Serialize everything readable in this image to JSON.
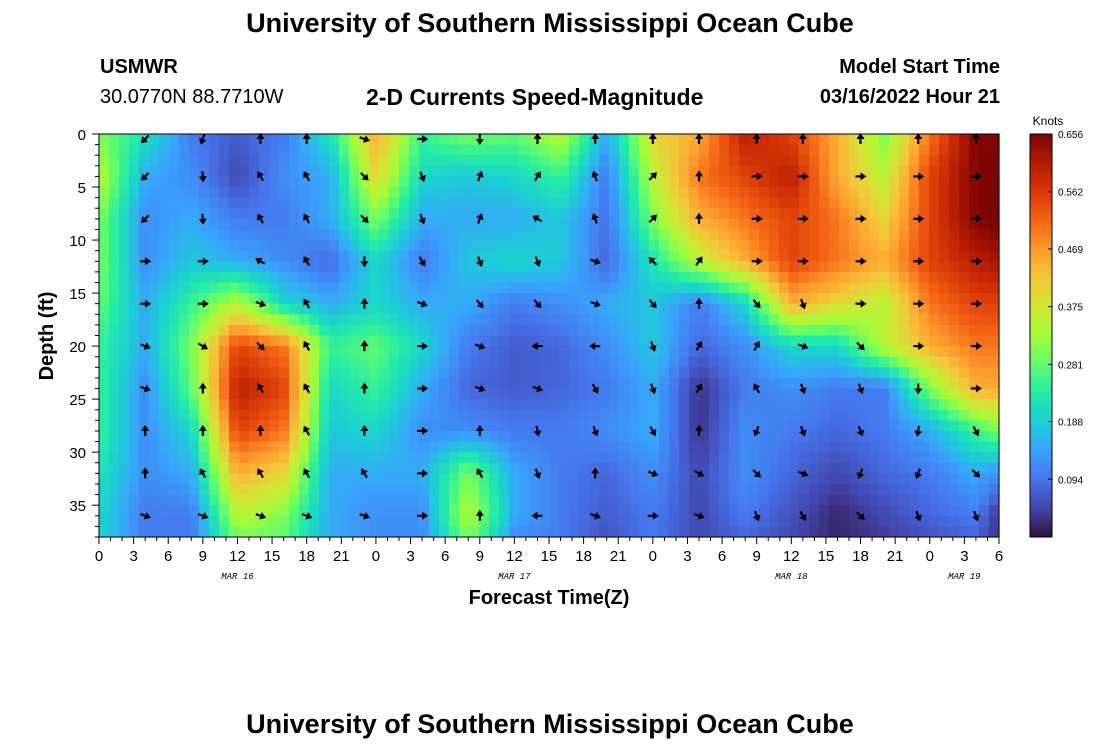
{
  "header": {
    "title": "University of Southern Mississippi Ocean Cube",
    "station": "USMWR",
    "coords": "30.0770N  88.7710W",
    "subtitle": "2-D Currents Speed-Magnitude",
    "model_label": "Model Start Time",
    "model_time": "03/16/2022 Hour 21"
  },
  "footer": {
    "title": "University of Southern Mississippi Ocean Cube"
  },
  "colors": {
    "ramp": [
      "#30123b",
      "#4145ab",
      "#4675ed",
      "#39a2fc",
      "#1bcfd4",
      "#24eca6",
      "#61fc6c",
      "#a4fc3b",
      "#d1e834",
      "#f3c63a",
      "#fe9b2d",
      "#f36315",
      "#d93806",
      "#b11901",
      "#7a0402"
    ]
  },
  "chart_data": {
    "type": "heatmap",
    "title": "2-D Currents Speed-Magnitude",
    "xlabel": "Forecast Time(Z)",
    "ylabel": "Depth (ft)",
    "x_tick_labels": [
      "0",
      "3",
      "6",
      "9",
      "12",
      "15",
      "18",
      "21",
      "0",
      "3",
      "6",
      "9",
      "12",
      "15",
      "18",
      "21",
      "0",
      "3",
      "6",
      "9",
      "12",
      "15",
      "18",
      "21",
      "0",
      "3",
      "6"
    ],
    "date_labels": [
      {
        "label": "MAR 16",
        "hour": 12
      },
      {
        "label": "MAR 17",
        "hour": 36
      },
      {
        "label": "MAR 18",
        "hour": 60
      },
      {
        "label": "MAR 19",
        "hour": 75
      }
    ],
    "xlim": [
      0,
      78
    ],
    "ylim": [
      0,
      38
    ],
    "y_ticks": [
      0,
      5,
      10,
      15,
      20,
      25,
      30,
      35
    ],
    "colorbar": {
      "label": "Knots",
      "min": 0,
      "max": 0.656,
      "ticks": [
        0.094,
        0.188,
        0.281,
        0.375,
        0.469,
        0.562,
        0.656
      ],
      "tick_labels": [
        "0.094",
        "0.188",
        "0.281",
        "0.375",
        "0.469",
        "0.562",
        "0.656"
      ]
    },
    "speed_x_hours": [
      0,
      4,
      8,
      12,
      16,
      20,
      24,
      28,
      32,
      36,
      40,
      44,
      48,
      52,
      56,
      60,
      64,
      68,
      72,
      76,
      78
    ],
    "speed_y_depths": [
      0,
      4,
      8,
      12,
      16,
      20,
      24,
      28,
      32,
      36,
      38
    ],
    "speed_knots": [
      [
        0.3,
        0.22,
        0.1,
        0.07,
        0.1,
        0.22,
        0.45,
        0.25,
        0.3,
        0.28,
        0.35,
        0.15,
        0.4,
        0.45,
        0.6,
        0.55,
        0.45,
        0.3,
        0.5,
        0.65,
        0.65
      ],
      [
        0.35,
        0.15,
        0.12,
        0.05,
        0.12,
        0.15,
        0.4,
        0.2,
        0.18,
        0.2,
        0.25,
        0.1,
        0.35,
        0.5,
        0.55,
        0.6,
        0.45,
        0.35,
        0.55,
        0.65,
        0.66
      ],
      [
        0.3,
        0.12,
        0.15,
        0.1,
        0.1,
        0.15,
        0.3,
        0.15,
        0.15,
        0.15,
        0.18,
        0.09,
        0.3,
        0.45,
        0.5,
        0.55,
        0.5,
        0.4,
        0.55,
        0.65,
        0.66
      ],
      [
        0.3,
        0.12,
        0.18,
        0.15,
        0.12,
        0.08,
        0.2,
        0.1,
        0.18,
        0.2,
        0.18,
        0.08,
        0.22,
        0.35,
        0.45,
        0.55,
        0.5,
        0.45,
        0.55,
        0.6,
        0.62
      ],
      [
        0.28,
        0.15,
        0.25,
        0.35,
        0.2,
        0.15,
        0.2,
        0.15,
        0.15,
        0.1,
        0.12,
        0.15,
        0.18,
        0.1,
        0.2,
        0.45,
        0.4,
        0.35,
        0.5,
        0.55,
        0.55
      ],
      [
        0.25,
        0.15,
        0.3,
        0.55,
        0.5,
        0.25,
        0.28,
        0.2,
        0.1,
        0.07,
        0.08,
        0.12,
        0.18,
        0.08,
        0.12,
        0.2,
        0.2,
        0.35,
        0.45,
        0.5,
        0.5
      ],
      [
        0.25,
        0.12,
        0.28,
        0.6,
        0.55,
        0.2,
        0.25,
        0.15,
        0.08,
        0.07,
        0.08,
        0.1,
        0.15,
        0.03,
        0.1,
        0.12,
        0.1,
        0.1,
        0.3,
        0.45,
        0.45
      ],
      [
        0.25,
        0.12,
        0.2,
        0.55,
        0.5,
        0.18,
        0.2,
        0.12,
        0.12,
        0.1,
        0.1,
        0.12,
        0.15,
        0.03,
        0.12,
        0.1,
        0.08,
        0.1,
        0.15,
        0.25,
        0.3
      ],
      [
        0.22,
        0.12,
        0.15,
        0.45,
        0.4,
        0.15,
        0.15,
        0.15,
        0.3,
        0.15,
        0.1,
        0.08,
        0.12,
        0.05,
        0.12,
        0.08,
        0.05,
        0.08,
        0.1,
        0.15,
        0.12
      ],
      [
        0.2,
        0.1,
        0.1,
        0.35,
        0.3,
        0.15,
        0.12,
        0.12,
        0.35,
        0.15,
        0.1,
        0.07,
        0.1,
        0.05,
        0.1,
        0.06,
        0.02,
        0.05,
        0.08,
        0.1,
        0.03
      ],
      [
        0.2,
        0.1,
        0.1,
        0.3,
        0.28,
        0.15,
        0.12,
        0.12,
        0.3,
        0.12,
        0.1,
        0.06,
        0.1,
        0.05,
        0.08,
        0.05,
        0.02,
        0.04,
        0.06,
        0.08,
        0.03
      ]
    ],
    "arrow_x_hours": [
      4,
      9,
      14,
      18,
      23,
      28,
      33,
      38,
      43,
      48,
      52,
      57,
      61,
      66,
      71,
      76
    ],
    "arrow_y_depths": [
      0,
      4,
      8,
      12,
      16,
      20,
      24,
      28,
      32,
      36
    ],
    "arrow_directions_deg": [
      [
        225,
        200,
        0,
        0,
        110,
        90,
        180,
        0,
        0,
        0,
        0,
        0,
        0,
        0,
        0,
        0
      ],
      [
        225,
        175,
        330,
        330,
        135,
        160,
        20,
        30,
        340,
        45,
        0,
        90,
        90,
        90,
        90,
        90
      ],
      [
        225,
        175,
        330,
        330,
        135,
        160,
        20,
        300,
        340,
        45,
        0,
        90,
        90,
        90,
        90,
        90
      ],
      [
        90,
        90,
        300,
        330,
        180,
        150,
        160,
        160,
        110,
        315,
        35,
        90,
        90,
        90,
        90,
        90
      ],
      [
        90,
        90,
        110,
        330,
        0,
        110,
        140,
        140,
        110,
        140,
        0,
        140,
        160,
        90,
        90,
        90
      ],
      [
        110,
        120,
        135,
        330,
        0,
        90,
        110,
        270,
        270,
        160,
        30,
        30,
        110,
        135,
        90,
        90
      ],
      [
        110,
        0,
        330,
        330,
        0,
        90,
        110,
        110,
        150,
        160,
        30,
        330,
        160,
        160,
        180,
        90
      ],
      [
        0,
        0,
        0,
        330,
        0,
        90,
        0,
        170,
        160,
        150,
        0,
        200,
        160,
        160,
        190,
        150
      ],
      [
        0,
        330,
        330,
        330,
        330,
        90,
        330,
        160,
        0,
        110,
        120,
        135,
        110,
        200,
        200,
        135
      ],
      [
        110,
        110,
        110,
        110,
        110,
        90,
        0,
        270,
        110,
        90,
        110,
        160,
        150,
        135,
        160,
        160
      ]
    ]
  }
}
